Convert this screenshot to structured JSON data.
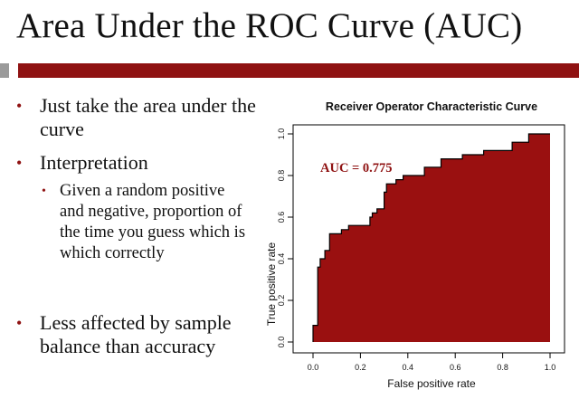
{
  "slide": {
    "title": "Area Under the ROC Curve (AUC)",
    "bullets": [
      {
        "text": "Just take the area under the curve"
      },
      {
        "text": "Interpretation"
      },
      {
        "text": "Less affected by sample balance than accuracy"
      }
    ],
    "sub_bullets": [
      {
        "text": "Given a random positive and negative, proportion of the time you guess which is which correctly"
      }
    ],
    "colors": {
      "accent": "#8f1212",
      "fill": "#9a1010",
      "rule_grey": "#9a9a9a"
    }
  },
  "chart_data": {
    "type": "area",
    "title": "Receiver Operator Characteristic Curve",
    "xlabel": "False positive rate",
    "ylabel": "True positive rate",
    "annotation": "AUC = 0.775",
    "xlim": [
      0,
      1
    ],
    "ylim": [
      0,
      1
    ],
    "xticks": [
      "0.0",
      "0.2",
      "0.4",
      "0.6",
      "0.8",
      "1.0"
    ],
    "yticks": [
      "0.0",
      "0.2",
      "0.4",
      "0.6",
      "0.8",
      "1.0"
    ],
    "grid": false,
    "x": [
      0.0,
      0.0,
      0.02,
      0.02,
      0.03,
      0.03,
      0.05,
      0.05,
      0.07,
      0.07,
      0.12,
      0.12,
      0.15,
      0.15,
      0.24,
      0.24,
      0.25,
      0.25,
      0.27,
      0.27,
      0.3,
      0.3,
      0.31,
      0.31,
      0.35,
      0.35,
      0.38,
      0.38,
      0.47,
      0.47,
      0.54,
      0.54,
      0.63,
      0.63,
      0.72,
      0.72,
      0.84,
      0.84,
      0.91,
      0.91,
      1.0,
      1.0
    ],
    "y": [
      0.0,
      0.08,
      0.08,
      0.36,
      0.36,
      0.4,
      0.4,
      0.44,
      0.44,
      0.52,
      0.52,
      0.54,
      0.54,
      0.56,
      0.56,
      0.6,
      0.6,
      0.62,
      0.62,
      0.64,
      0.64,
      0.72,
      0.72,
      0.76,
      0.76,
      0.78,
      0.78,
      0.8,
      0.8,
      0.84,
      0.84,
      0.88,
      0.88,
      0.9,
      0.9,
      0.92,
      0.92,
      0.96,
      0.96,
      1.0,
      1.0,
      0.0
    ]
  }
}
